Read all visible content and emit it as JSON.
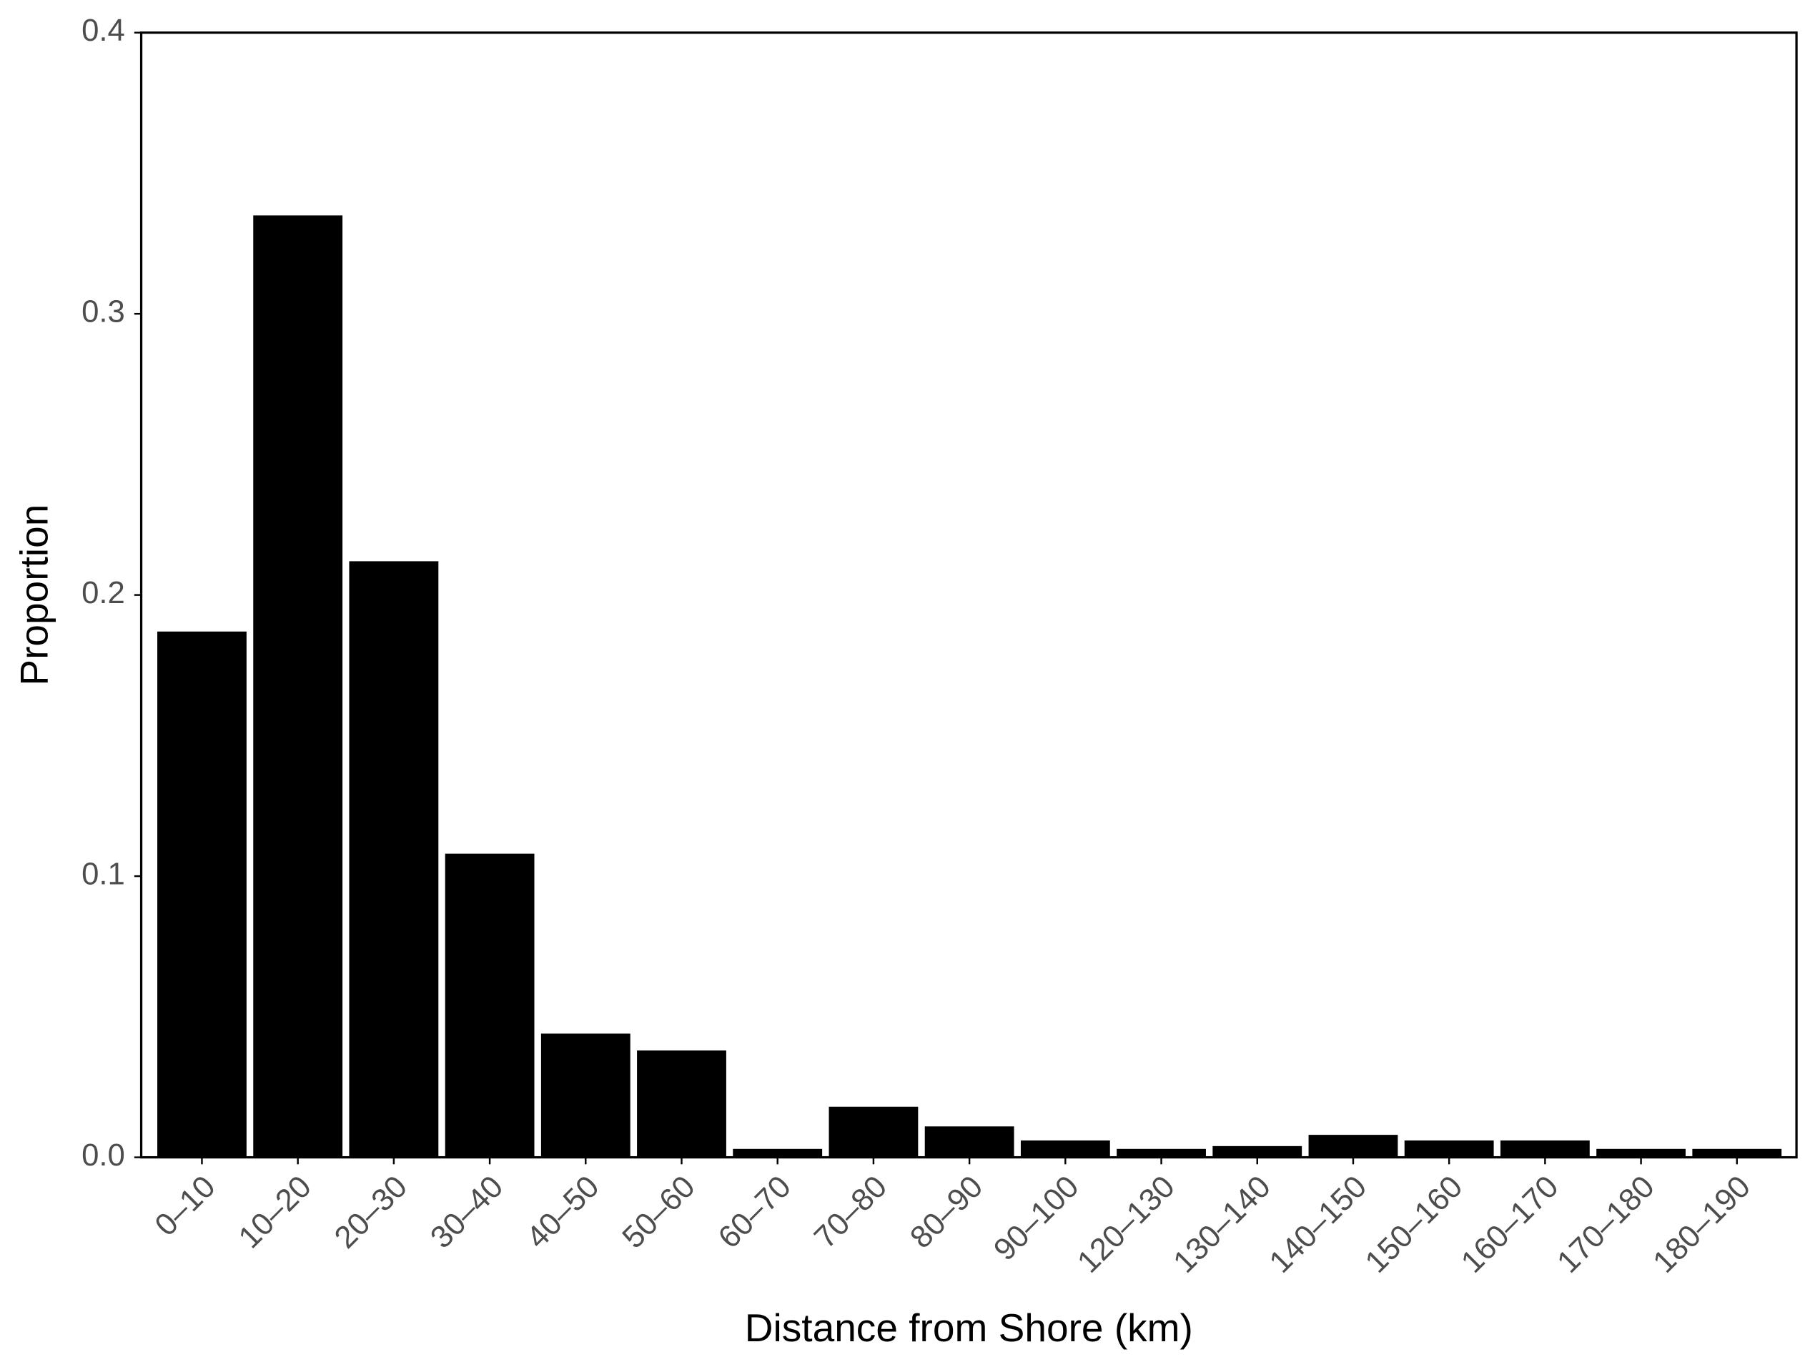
{
  "chart_data": {
    "type": "bar",
    "x_label": "Distance from Shore (km)",
    "y_label": "Proportion",
    "categories": [
      "0–10",
      "10–20",
      "20–30",
      "30–40",
      "40–50",
      "50–60",
      "60–70",
      "70–80",
      "80–90",
      "90–100",
      "120–130",
      "130–140",
      "140–150",
      "150–160",
      "160–170",
      "170–180",
      "180–190"
    ],
    "values": [
      0.187,
      0.335,
      0.212,
      0.108,
      0.044,
      0.038,
      0.003,
      0.018,
      0.011,
      0.006,
      0.003,
      0.004,
      0.008,
      0.006,
      0.006,
      0.003,
      0.003
    ],
    "color": "#000000",
    "ylim": [
      0,
      0.4
    ],
    "yticks": [
      {
        "value": 0,
        "label": "0.0"
      },
      0.1,
      0.2,
      0.3,
      0.4
    ],
    "grid": false
  }
}
